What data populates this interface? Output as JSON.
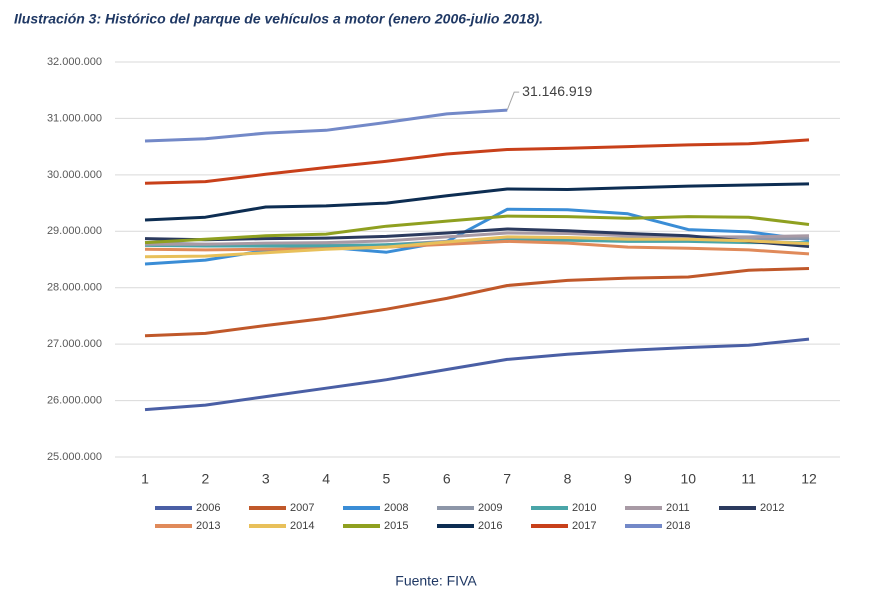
{
  "chart_data": {
    "type": "line",
    "title": "Ilustración 3: Histórico del parque de vehículos a motor (enero 2006-julio 2018).",
    "source": "Fuente: FIVA",
    "categories": [
      "1",
      "2",
      "3",
      "4",
      "5",
      "6",
      "7",
      "8",
      "9",
      "10",
      "11",
      "12"
    ],
    "ylim": [
      25000000,
      32000000
    ],
    "yticks": [
      {
        "value": 25000000,
        "label": "25.000.000"
      },
      {
        "value": 26000000,
        "label": "26.000.000"
      },
      {
        "value": 27000000,
        "label": "27.000.000"
      },
      {
        "value": 28000000,
        "label": "28.000.000"
      },
      {
        "value": 29000000,
        "label": "29.000.000"
      },
      {
        "value": 30000000,
        "label": "30.000.000"
      },
      {
        "value": 31000000,
        "label": "31.000.000"
      },
      {
        "value": 32000000,
        "label": "32.000.000"
      }
    ],
    "grid": true,
    "legend": "bottom",
    "series": [
      {
        "name": "2006",
        "color": "#4a5fa5",
        "values": [
          25840000,
          25920000,
          26070000,
          26220000,
          26370000,
          26550000,
          26730000,
          26820000,
          26890000,
          26940000,
          26980000,
          27090000
        ]
      },
      {
        "name": "2007",
        "color": "#c0582a",
        "values": [
          27150000,
          27190000,
          27330000,
          27460000,
          27620000,
          27810000,
          28040000,
          28130000,
          28170000,
          28190000,
          28310000,
          28340000
        ]
      },
      {
        "name": "2008",
        "color": "#3a8dd6",
        "values": [
          28420000,
          28490000,
          28660000,
          28720000,
          28630000,
          28820000,
          29390000,
          29380000,
          29310000,
          29030000,
          28990000,
          28850000
        ]
      },
      {
        "name": "2009",
        "color": "#8d96a8",
        "values": [
          28800000,
          28770000,
          28770000,
          28750000,
          28760000,
          28820000,
          28870000,
          28870000,
          28870000,
          28860000,
          28850000,
          28880000
        ]
      },
      {
        "name": "2010",
        "color": "#4aa5a8",
        "values": [
          28750000,
          28740000,
          28740000,
          28740000,
          28760000,
          28800000,
          28840000,
          28840000,
          28820000,
          28820000,
          28800000,
          28800000
        ]
      },
      {
        "name": "2011",
        "color": "#a89aa5",
        "values": [
          28770000,
          28770000,
          28790000,
          28800000,
          28830000,
          28900000,
          28970000,
          28960000,
          28920000,
          28900000,
          28900000,
          28920000
        ]
      },
      {
        "name": "2012",
        "color": "#2b3a5e",
        "values": [
          28870000,
          28850000,
          28870000,
          28880000,
          28910000,
          28970000,
          29040000,
          29010000,
          28960000,
          28920000,
          28820000,
          28730000
        ]
      },
      {
        "name": "2013",
        "color": "#e08a5a",
        "values": [
          28680000,
          28670000,
          28680000,
          28690000,
          28720000,
          28770000,
          28820000,
          28790000,
          28720000,
          28700000,
          28670000,
          28600000
        ]
      },
      {
        "name": "2014",
        "color": "#e8c05a",
        "values": [
          28550000,
          28560000,
          28620000,
          28680000,
          28720000,
          28810000,
          28900000,
          28890000,
          28860000,
          28860000,
          28830000,
          28780000
        ]
      },
      {
        "name": "2015",
        "color": "#8fa020",
        "values": [
          28800000,
          28860000,
          28920000,
          28950000,
          29090000,
          29180000,
          29270000,
          29260000,
          29230000,
          29260000,
          29250000,
          29120000
        ]
      },
      {
        "name": "2016",
        "color": "#0d2d52",
        "values": [
          29200000,
          29250000,
          29430000,
          29450000,
          29500000,
          29630000,
          29750000,
          29740000,
          29770000,
          29800000,
          29820000,
          29840000
        ]
      },
      {
        "name": "2017",
        "color": "#c8401a",
        "values": [
          29850000,
          29880000,
          30010000,
          30130000,
          30240000,
          30370000,
          30450000,
          30470000,
          30500000,
          30530000,
          30550000,
          30620000
        ]
      },
      {
        "name": "2018",
        "color": "#7389c8",
        "values": [
          30600000,
          30640000,
          30740000,
          30790000,
          30930000,
          31080000,
          31146919,
          null,
          null,
          null,
          null,
          null
        ],
        "value_labels": [
          null,
          null,
          null,
          null,
          null,
          null,
          "31.146.919",
          null,
          null,
          null,
          null,
          null
        ]
      }
    ]
  }
}
